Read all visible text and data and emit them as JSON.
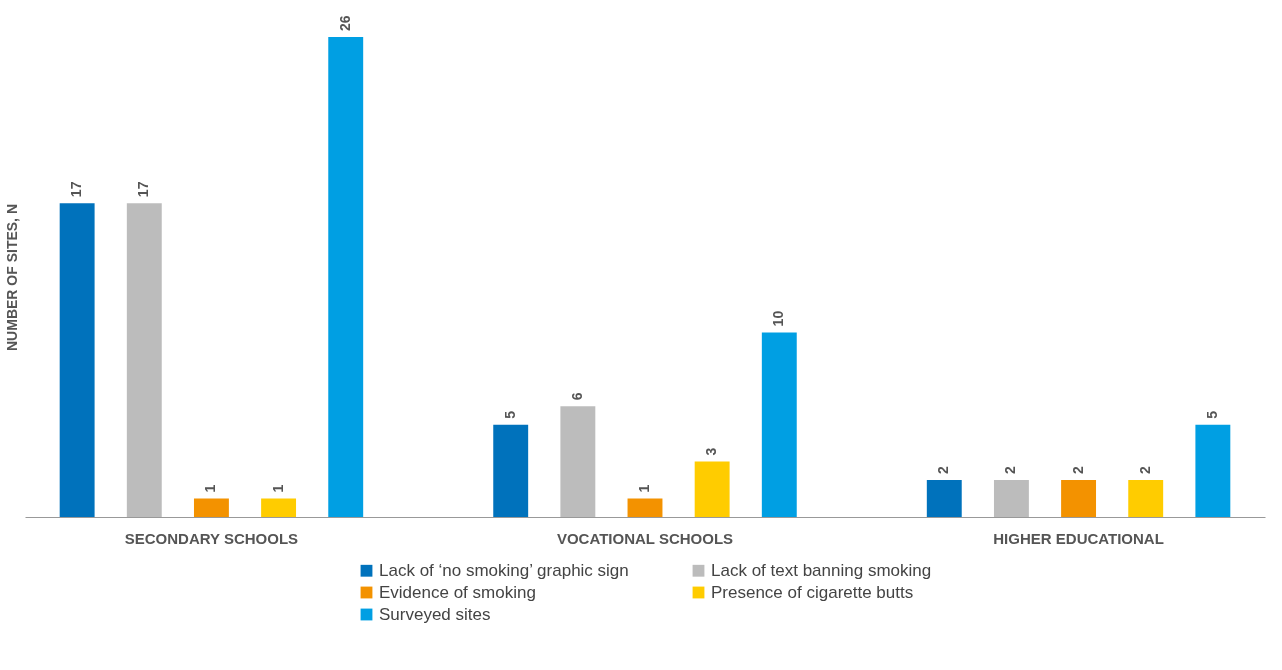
{
  "chart_data": {
    "type": "bar",
    "ylabel": "NUMBER OF SITES, N",
    "categories": [
      "SECONDARY SCHOOLS",
      "VOCATIONAL SCHOOLS",
      "HIGHER EDUCATIONAL"
    ],
    "series": [
      {
        "name": "Lack of ‘no smoking’ graphic sign",
        "color": "#0072bc",
        "values": [
          17,
          5,
          2
        ]
      },
      {
        "name": "Lack of text banning smoking",
        "color": "#bcbcbc",
        "values": [
          17,
          6,
          2
        ]
      },
      {
        "name": "Evidence of smoking",
        "color": "#f39200",
        "values": [
          1,
          1,
          2
        ]
      },
      {
        "name": "Presence of cigarette butts",
        "color": "#ffcc00",
        "values": [
          1,
          3,
          2
        ]
      },
      {
        "name": "Surveyed sites",
        "color": "#009fe3",
        "values": [
          26,
          10,
          5
        ]
      }
    ],
    "data_labels": true,
    "legend": "bottom",
    "grid": false
  }
}
